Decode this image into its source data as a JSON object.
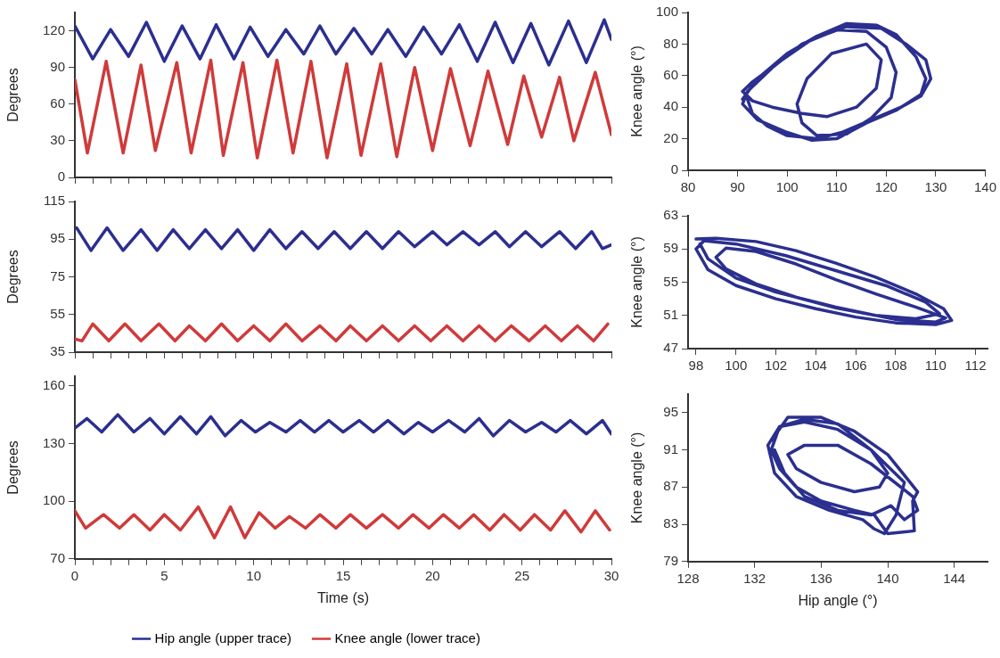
{
  "chart_data": [
    {
      "type": "line",
      "ylabel": "Degrees",
      "xlim": [
        0,
        30
      ],
      "ylim": [
        0,
        135
      ],
      "yticks": [
        0,
        30,
        60,
        90,
        120
      ],
      "tick_labels": "y",
      "grid": false,
      "legend": false,
      "marker": "none",
      "line_style": "solid",
      "xticks": [
        0,
        {
          "value": 1,
          "label": null
        },
        {
          "value": 2,
          "label": null
        },
        {
          "value": 3,
          "label": null
        },
        {
          "value": 4,
          "label": null
        },
        5,
        {
          "value": 6,
          "label": null
        },
        {
          "value": 7,
          "label": null
        },
        {
          "value": 8,
          "label": null
        },
        {
          "value": 9,
          "label": null
        },
        10,
        {
          "value": 11,
          "label": null
        },
        {
          "value": 12,
          "label": null
        },
        {
          "value": 13,
          "label": null
        },
        {
          "value": 14,
          "label": null
        },
        15,
        {
          "value": 16,
          "label": null
        },
        {
          "value": 17,
          "label": null
        },
        {
          "value": 18,
          "label": null
        },
        {
          "value": 19,
          "label": null
        },
        20,
        {
          "value": 21,
          "label": null
        },
        {
          "value": 22,
          "label": null
        },
        {
          "value": 23,
          "label": null
        },
        {
          "value": 24,
          "label": null
        },
        25,
        {
          "value": 26,
          "label": null
        },
        {
          "value": 27,
          "label": null
        },
        {
          "value": 28,
          "label": null
        },
        {
          "value": 29,
          "label": null
        },
        30
      ],
      "series": [
        {
          "color": "#2b2f8f",
          "x": [
            0,
            1.0,
            2.0,
            3.0,
            4.0,
            5.0,
            6.0,
            7.0,
            7.9,
            8.9,
            9.8,
            10.8,
            11.8,
            12.8,
            13.7,
            14.6,
            15.6,
            16.6,
            17.5,
            18.5,
            19.5,
            20.5,
            21.5,
            22.5,
            23.5,
            24.5,
            25.5,
            26.5,
            27.6,
            28.6,
            29.6,
            30
          ],
          "values": [
            124,
            97,
            121,
            99,
            127,
            95,
            124,
            97,
            125,
            97,
            123,
            99,
            121,
            101,
            124,
            101,
            122,
            101,
            121,
            99,
            123,
            101,
            125,
            95,
            127,
            94,
            126,
            92,
            128,
            94,
            129,
            113
          ]
        },
        {
          "color": "#d03a3a",
          "x": [
            0,
            0.7,
            1.75,
            2.7,
            3.7,
            4.5,
            5.7,
            6.5,
            7.6,
            8.3,
            9.4,
            10.2,
            11.3,
            12.2,
            13.2,
            14.1,
            15.2,
            16.0,
            17.1,
            18.0,
            19.0,
            20.0,
            21.0,
            22.1,
            23.1,
            24.2,
            25.1,
            26.1,
            27.1,
            27.9,
            29.1,
            30
          ],
          "values": [
            80,
            20,
            95,
            20,
            92,
            22,
            94,
            20,
            96,
            18,
            94,
            16,
            96,
            20,
            95,
            16,
            93,
            18,
            93,
            17,
            90,
            22,
            89,
            26,
            87,
            27,
            83,
            33,
            82,
            30,
            86,
            35
          ]
        }
      ]
    },
    {
      "type": "line",
      "ylabel": "Degrees",
      "xlim": [
        0,
        30
      ],
      "ylim": [
        35,
        115
      ],
      "yticks": [
        35,
        55,
        75,
        95,
        115
      ],
      "tick_labels": "y",
      "grid": false,
      "legend": false,
      "marker": "none",
      "line_style": "solid",
      "xticks": [
        0,
        {
          "value": 1,
          "label": null
        },
        {
          "value": 2,
          "label": null
        },
        {
          "value": 3,
          "label": null
        },
        {
          "value": 4,
          "label": null
        },
        5,
        {
          "value": 6,
          "label": null
        },
        {
          "value": 7,
          "label": null
        },
        {
          "value": 8,
          "label": null
        },
        {
          "value": 9,
          "label": null
        },
        10,
        {
          "value": 11,
          "label": null
        },
        {
          "value": 12,
          "label": null
        },
        {
          "value": 13,
          "label": null
        },
        {
          "value": 14,
          "label": null
        },
        15,
        {
          "value": 16,
          "label": null
        },
        {
          "value": 17,
          "label": null
        },
        {
          "value": 18,
          "label": null
        },
        {
          "value": 19,
          "label": null
        },
        20,
        {
          "value": 21,
          "label": null
        },
        {
          "value": 22,
          "label": null
        },
        {
          "value": 23,
          "label": null
        },
        {
          "value": 24,
          "label": null
        },
        25,
        {
          "value": 26,
          "label": null
        },
        {
          "value": 27,
          "label": null
        },
        {
          "value": 28,
          "label": null
        },
        {
          "value": 29,
          "label": null
        },
        30
      ],
      "series": [
        {
          "color": "#2b2f8f",
          "x": [
            0.1,
            0.9,
            1.8,
            2.7,
            3.7,
            4.6,
            5.5,
            6.4,
            7.3,
            8.2,
            9.1,
            10.0,
            10.9,
            11.8,
            12.7,
            13.6,
            14.5,
            15.4,
            16.3,
            17.2,
            18.1,
            19.0,
            20.0,
            20.8,
            21.7,
            22.6,
            23.5,
            24.3,
            25.2,
            26.1,
            27.1,
            28.0,
            28.9,
            29.5,
            30
          ],
          "values": [
            101,
            89,
            101,
            89,
            100,
            89,
            100,
            90,
            100,
            90,
            100,
            89,
            100,
            90,
            99,
            90,
            99,
            90,
            99,
            90,
            99,
            91,
            99,
            92,
            99,
            92,
            99,
            91,
            99,
            91,
            99,
            90,
            99,
            90,
            92
          ]
        },
        {
          "color": "#d03a3a",
          "x": [
            0,
            0.4,
            1.0,
            1.9,
            2.8,
            3.7,
            4.7,
            5.6,
            6.4,
            7.3,
            8.2,
            9.1,
            10.0,
            10.9,
            11.8,
            12.7,
            13.7,
            14.6,
            15.4,
            16.3,
            17.2,
            18.1,
            19.0,
            19.9,
            20.8,
            21.7,
            22.6,
            23.5,
            24.4,
            25.4,
            26.3,
            27.2,
            28.1,
            29.0,
            29.8
          ],
          "values": [
            42,
            41,
            50,
            41,
            50,
            41,
            50,
            41,
            49,
            41,
            50,
            41,
            49,
            41,
            50,
            41,
            49,
            41,
            49,
            41,
            49,
            41,
            49,
            41,
            49,
            41,
            49,
            41,
            49,
            41,
            49,
            41,
            49,
            41,
            50
          ]
        }
      ]
    },
    {
      "type": "line",
      "ylabel": "Degrees",
      "xlabel": "Time (s)",
      "xlim": [
        0,
        30
      ],
      "ylim": [
        70,
        165
      ],
      "yticks": [
        70,
        100,
        130,
        160
      ],
      "grid": false,
      "legend": "bottom",
      "marker": "none",
      "line_style": "solid",
      "xticks": [
        0,
        {
          "value": 1,
          "label": null
        },
        {
          "value": 2,
          "label": null
        },
        {
          "value": 3,
          "label": null
        },
        {
          "value": 4,
          "label": null
        },
        5,
        {
          "value": 6,
          "label": null
        },
        {
          "value": 7,
          "label": null
        },
        {
          "value": 8,
          "label": null
        },
        {
          "value": 9,
          "label": null
        },
        10,
        {
          "value": 11,
          "label": null
        },
        {
          "value": 12,
          "label": null
        },
        {
          "value": 13,
          "label": null
        },
        {
          "value": 14,
          "label": null
        },
        15,
        {
          "value": 16,
          "label": null
        },
        {
          "value": 17,
          "label": null
        },
        {
          "value": 18,
          "label": null
        },
        {
          "value": 19,
          "label": null
        },
        20,
        {
          "value": 21,
          "label": null
        },
        {
          "value": 22,
          "label": null
        },
        {
          "value": 23,
          "label": null
        },
        {
          "value": 24,
          "label": null
        },
        25,
        {
          "value": 26,
          "label": null
        },
        {
          "value": 27,
          "label": null
        },
        {
          "value": 28,
          "label": null
        },
        {
          "value": 29,
          "label": null
        },
        30
      ],
      "series": [
        {
          "name": "Hip angle (upper trace)",
          "color": "#2b2f8f",
          "x": [
            0,
            0.68,
            1.5,
            2.4,
            3.3,
            4.2,
            5.0,
            5.9,
            6.8,
            7.6,
            8.4,
            9.3,
            10.1,
            10.9,
            11.8,
            12.6,
            13.4,
            14.2,
            15.0,
            15.9,
            16.7,
            17.5,
            18.4,
            19.2,
            20.0,
            20.9,
            21.8,
            22.6,
            23.4,
            24.3,
            25.2,
            26.1,
            26.9,
            27.7,
            28.6,
            29.5,
            30
          ],
          "values": [
            138,
            143,
            136,
            145,
            136,
            143,
            135,
            144,
            135,
            144,
            134,
            142,
            136,
            141,
            136,
            142,
            136,
            142,
            136,
            142,
            136,
            142,
            135,
            141,
            136,
            142,
            136,
            143,
            134,
            142,
            136,
            141,
            136,
            142,
            135,
            142,
            135
          ]
        },
        {
          "name": "Knee angle (lower trace)",
          "color": "#d03a3a",
          "x": [
            0,
            0.6,
            1.6,
            2.5,
            3.3,
            4.2,
            5.0,
            5.9,
            6.9,
            7.8,
            8.7,
            9.5,
            10.3,
            11.2,
            12.0,
            12.9,
            13.7,
            14.6,
            15.4,
            16.3,
            17.2,
            18.1,
            18.9,
            19.8,
            20.6,
            21.5,
            22.3,
            23.2,
            24.0,
            24.9,
            25.7,
            26.6,
            27.4,
            28.3,
            29.1,
            29.9
          ],
          "values": [
            95,
            86,
            93,
            86,
            93,
            85,
            93,
            85,
            97,
            81,
            97,
            81,
            94,
            86,
            92,
            86,
            93,
            86,
            93,
            86,
            93,
            86,
            93,
            86,
            93,
            86,
            93,
            85,
            93,
            85,
            93,
            85,
            95,
            84,
            95,
            85
          ]
        }
      ]
    },
    {
      "type": "line",
      "ylabel": "Knee angle (°)",
      "xlim": [
        80,
        140
      ],
      "ylim": [
        0,
        100
      ],
      "xticks": [
        80,
        90,
        100,
        110,
        120,
        130,
        140
      ],
      "yticks": [
        0,
        20,
        40,
        60,
        80,
        100
      ],
      "grid": false,
      "legend": false,
      "marker": "none",
      "line_style": "solid",
      "series": [
        {
          "color": "#2b2f8f",
          "x": [
            91,
            94,
            100,
            106,
            112,
            118,
            122,
            126,
            128,
            127,
            122,
            116,
            110,
            105,
            100,
            94,
            91,
            92,
            97,
            103,
            110,
            116,
            120,
            122,
            121,
            117,
            112,
            106,
            103,
            102,
            104,
            109,
            116,
            119,
            118,
            114,
            108,
            103,
            97,
            93,
            91,
            93,
            99,
            105,
            112,
            119,
            124,
            128,
            129,
            127,
            123,
            117,
            111,
            106,
            100,
            96,
            93,
            92
          ],
          "values": [
            45,
            58,
            74,
            85,
            93,
            92,
            86,
            72,
            58,
            48,
            38,
            30,
            20,
            19,
            24,
            32,
            42,
            50,
            65,
            80,
            89,
            88,
            78,
            62,
            46,
            33,
            23,
            22,
            30,
            42,
            58,
            74,
            80,
            70,
            52,
            40,
            34,
            36,
            40,
            44,
            50,
            56,
            70,
            83,
            91,
            90,
            80,
            70,
            58,
            47,
            40,
            32,
            24,
            20,
            22,
            28,
            36,
            45
          ]
        }
      ]
    },
    {
      "type": "line",
      "ylabel": "Knee angle (°)",
      "xlim": [
        97.6,
        112.6
      ],
      "ylim": [
        47,
        63
      ],
      "xticks": [
        98,
        100,
        102,
        104,
        106,
        108,
        110,
        112
      ],
      "yticks": [
        47,
        51,
        55,
        59,
        63
      ],
      "grid": false,
      "legend": false,
      "marker": "none",
      "line_style": "solid",
      "series": [
        {
          "color": "#2b2f8f",
          "x": [
            98,
            99,
            101,
            103,
            105,
            107,
            109,
            110.4,
            110.8,
            110,
            108,
            106,
            104,
            102,
            100,
            98.6,
            98,
            98.4,
            100,
            102.5,
            105,
            107.5,
            109.5,
            110.2,
            109,
            107,
            105,
            103,
            101,
            99.5,
            99,
            99.5,
            101,
            103,
            105,
            107,
            109,
            110.5,
            110,
            108,
            105,
            102,
            100,
            98.6,
            98.2
          ],
          "values": [
            60.2,
            60.3,
            59.9,
            58.8,
            57.3,
            55.6,
            53.6,
            51.8,
            50.4,
            49.9,
            50.1,
            50.8,
            51.8,
            53.0,
            54.6,
            56.5,
            59.0,
            60.0,
            59.6,
            58.2,
            56.4,
            54.6,
            52.6,
            51.2,
            50.6,
            51.0,
            51.9,
            53.2,
            54.8,
            56.6,
            58.0,
            59.1,
            58.7,
            57.2,
            55.3,
            53.6,
            52.0,
            50.7,
            50.2,
            50.5,
            52.0,
            53.8,
            55.5,
            57.8,
            59.6
          ]
        }
      ]
    },
    {
      "type": "line",
      "ylabel": "Knee angle (°)",
      "xlabel": "Hip angle (°)",
      "xlim": [
        128,
        146
      ],
      "ylim": [
        79,
        97
      ],
      "xticks": [
        128,
        132,
        136,
        140,
        144
      ],
      "yticks": [
        79,
        83,
        87,
        91,
        95
      ],
      "grid": false,
      "legend": false,
      "marker": "none",
      "line_style": "solid",
      "series": [
        {
          "color": "#2b2f8f",
          "x": [
            133,
            134,
            136,
            138,
            140,
            141.8,
            141.5,
            141.6,
            140,
            139.2,
            138,
            136,
            134.5,
            133.5,
            133,
            133.5,
            135,
            137,
            139,
            141,
            140.5,
            139.8,
            139.2,
            138.5,
            136.5,
            134.5,
            133.2,
            132.8,
            133.5,
            135,
            137,
            139,
            140,
            139.5,
            138,
            136,
            134.5,
            134,
            135,
            137,
            139,
            141.5,
            141.8,
            141,
            140.2,
            139,
            137,
            135,
            133.8,
            133.2
          ],
          "values": [
            92,
            94.5,
            94.5,
            93,
            90.5,
            86.5,
            85.5,
            82.3,
            82,
            84,
            84.5,
            85.5,
            87,
            89,
            91,
            93.5,
            94,
            93.2,
            91,
            87.5,
            84,
            82,
            82.5,
            83.5,
            84.5,
            86,
            88.5,
            91.5,
            93.5,
            94.3,
            93.8,
            91,
            88.5,
            87,
            86.5,
            87.5,
            89,
            90.5,
            91.5,
            91.5,
            89.5,
            86,
            84.5,
            83.5,
            85,
            84,
            84.5,
            86,
            88.5,
            91
          ]
        }
      ]
    }
  ]
}
